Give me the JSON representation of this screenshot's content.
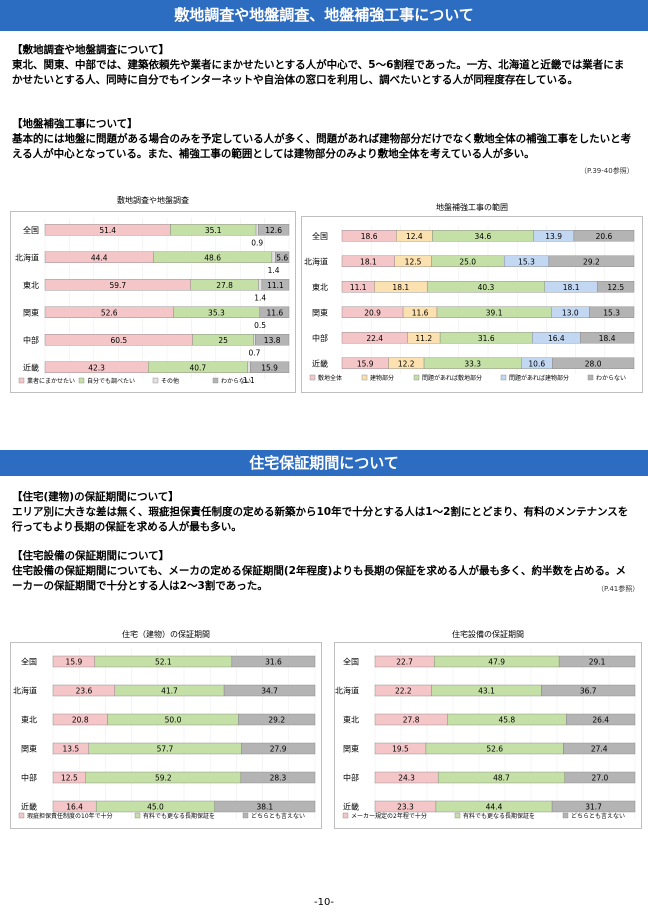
{
  "banner1": "敷地調査や地盤調査、地盤補強工事について",
  "banner2": "住宅保証期間について",
  "sec1": {
    "head": "【敷地調査や地盤調査について】",
    "body": "東北、関東、中部では、建築依頼先や業者にまかせたいとする人が中心で、5～6割程であった。一方、北海道と近畿では業者にまかせたいとする人、同時に自分でもインターネットや自治体の窓口を利用し、調べたいとする人が同程度存在している。"
  },
  "sec2": {
    "head": "【地盤補強工事について】",
    "body": "基本的には地盤に問題がある場合のみを予定している人が多く、問題があれば建物部分だけでなく敷地全体の補強工事をしたいと考える人が中心となっている。また、補強工事の範囲としては建物部分のみより敷地全体を考えている人が多い。",
    "ref": "（P.39-40参照）"
  },
  "sec3": {
    "head": "【住宅(建物)の保証期間について】",
    "body": "エリア別に大きな差は無く、瑕疵担保責任制度の定める新築から10年で十分とする人は1～2割にとどまり、有料のメンテナンスを行ってもより長期の保証を求める人が最も多い。"
  },
  "sec4": {
    "head": "【住宅設備の保証期間について】",
    "body": "住宅設備の保証期間についても、メーカの定める保証期間(2年程度)よりも長期の保証を求める人が最も多く、約半数を占める。メーカーの保証期間で十分とする人は2～3割であった。",
    "ref": "（P.41参照）"
  },
  "page_number": "-10-",
  "chart_data": [
    {
      "type": "bar",
      "orientation": "horizontal-stacked-100",
      "title": "敷地調査や地盤調査",
      "categories": [
        "全国",
        "北海道",
        "東北",
        "関東",
        "中部",
        "近畿"
      ],
      "series": [
        {
          "name": "業者にまかせたい",
          "color": "#f4c6c8",
          "values": [
            51.4,
            44.4,
            59.7,
            52.6,
            60.5,
            42.3
          ]
        },
        {
          "name": "自分でも調べたい",
          "color": "#c5e0a6",
          "values": [
            35.1,
            48.6,
            27.8,
            35.3,
            25,
            40.7
          ]
        },
        {
          "name": "その他",
          "color": "#e2e2e2",
          "values": [
            0.9,
            1.4,
            1.4,
            0.5,
            0.7,
            1.1
          ]
        },
        {
          "name": "わからない",
          "color": "#b4b4b4",
          "values": [
            12.6,
            5.6,
            11.1,
            11.6,
            13.8,
            15.9
          ]
        }
      ],
      "value_labels": [
        [
          "51.4",
          "35.1",
          "0.9",
          "12.6"
        ],
        [
          "44.4",
          "48.6",
          "1.4",
          "5.6"
        ],
        [
          "59.7",
          "27.8",
          "1.4",
          "11.1"
        ],
        [
          "52.6",
          "35.3",
          "0.5",
          "11.6"
        ],
        [
          "60.5",
          "25",
          "0.7",
          "13.8"
        ],
        [
          "42.3",
          "40.7",
          "1.1",
          "15.9"
        ]
      ],
      "outside_label_series": 2,
      "legend": "bottom"
    },
    {
      "type": "bar",
      "orientation": "horizontal-stacked-100",
      "title": "地盤補強工事の範囲",
      "categories": [
        "全国",
        "北海道",
        "東北",
        "関東",
        "中部",
        "近畿"
      ],
      "series": [
        {
          "name": "敷地全体",
          "color": "#f4c6c8",
          "values": [
            18.6,
            18.1,
            11.1,
            20.9,
            22.4,
            15.9
          ]
        },
        {
          "name": "建物部分",
          "color": "#fbe0b0",
          "values": [
            12.4,
            12.5,
            18.1,
            11.6,
            11.2,
            12.2
          ]
        },
        {
          "name": "問題があれば敷地部分",
          "color": "#c5e0a6",
          "values": [
            34.6,
            25.0,
            40.3,
            39.1,
            31.6,
            33.3
          ]
        },
        {
          "name": "問題があれば建物部分",
          "color": "#c2d8f2",
          "values": [
            13.9,
            15.3,
            18.1,
            13.0,
            16.4,
            10.6
          ]
        },
        {
          "name": "わからない",
          "color": "#b4b4b4",
          "values": [
            20.6,
            29.2,
            12.5,
            15.3,
            18.4,
            28.0
          ]
        }
      ],
      "value_labels": [
        [
          "18.6",
          "12.4",
          "34.6",
          "13.9",
          "20.6"
        ],
        [
          "18.1",
          "12.5",
          "25.0",
          "15.3",
          "29.2"
        ],
        [
          "11.1",
          "18.1",
          "40.3",
          "18.1",
          "12.5"
        ],
        [
          "20.9",
          "11.6",
          "39.1",
          "13.0",
          "15.3"
        ],
        [
          "22.4",
          "11.2",
          "31.6",
          "16.4",
          "18.4"
        ],
        [
          "15.9",
          "12.2",
          "33.3",
          "10.6",
          "28.0"
        ]
      ],
      "legend": "bottom"
    },
    {
      "type": "bar",
      "orientation": "horizontal-stacked-100",
      "title": "住宅（建物）の保証期間",
      "categories": [
        "全国",
        "北海道",
        "東北",
        "関東",
        "中部",
        "近畿"
      ],
      "series": [
        {
          "name": "瑕疵担保責任制度の10年で十分",
          "color": "#f4c6c8",
          "values": [
            15.9,
            23.6,
            20.8,
            13.5,
            12.5,
            16.4
          ]
        },
        {
          "name": "有料でも更なる長期保証を",
          "color": "#c5e0a6",
          "values": [
            52.1,
            41.7,
            50.0,
            57.7,
            59.2,
            45.0
          ]
        },
        {
          "name": "どちらとも言えない",
          "color": "#b4b4b4",
          "values": [
            31.6,
            34.7,
            29.2,
            27.9,
            28.3,
            38.1
          ]
        }
      ],
      "value_labels": [
        [
          "15.9",
          "52.1",
          "31.6"
        ],
        [
          "23.6",
          "41.7",
          "34.7"
        ],
        [
          "20.8",
          "50.0",
          "29.2"
        ],
        [
          "13.5",
          "57.7",
          "27.9"
        ],
        [
          "12.5",
          "59.2",
          "28.3"
        ],
        [
          "16.4",
          "45.0",
          "38.1"
        ]
      ],
      "legend": "bottom"
    },
    {
      "type": "bar",
      "orientation": "horizontal-stacked-100",
      "title": "住宅設備の保証期間",
      "categories": [
        "全国",
        "北海道",
        "東北",
        "関東",
        "中部",
        "近畿"
      ],
      "series": [
        {
          "name": "メーカー規定の2年程で十分",
          "color": "#f4c6c8",
          "values": [
            22.7,
            22.2,
            27.8,
            19.5,
            24.3,
            23.3
          ]
        },
        {
          "name": "有料でも更なる長期保証を",
          "color": "#c5e0a6",
          "values": [
            47.9,
            43.1,
            45.8,
            52.6,
            48.7,
            44.4
          ]
        },
        {
          "name": "どちらとも言えない",
          "color": "#b4b4b4",
          "values": [
            29.1,
            36.7,
            26.4,
            27.4,
            27.0,
            31.7
          ]
        }
      ],
      "value_labels": [
        [
          "22.7",
          "47.9",
          "29.1"
        ],
        [
          "22.2",
          "43.1",
          "36.7"
        ],
        [
          "27.8",
          "45.8",
          "26.4"
        ],
        [
          "19.5",
          "52.6",
          "27.4"
        ],
        [
          "24.3",
          "48.7",
          "27.0"
        ],
        [
          "23.3",
          "44.4",
          "31.7"
        ]
      ],
      "legend": "bottom"
    }
  ]
}
